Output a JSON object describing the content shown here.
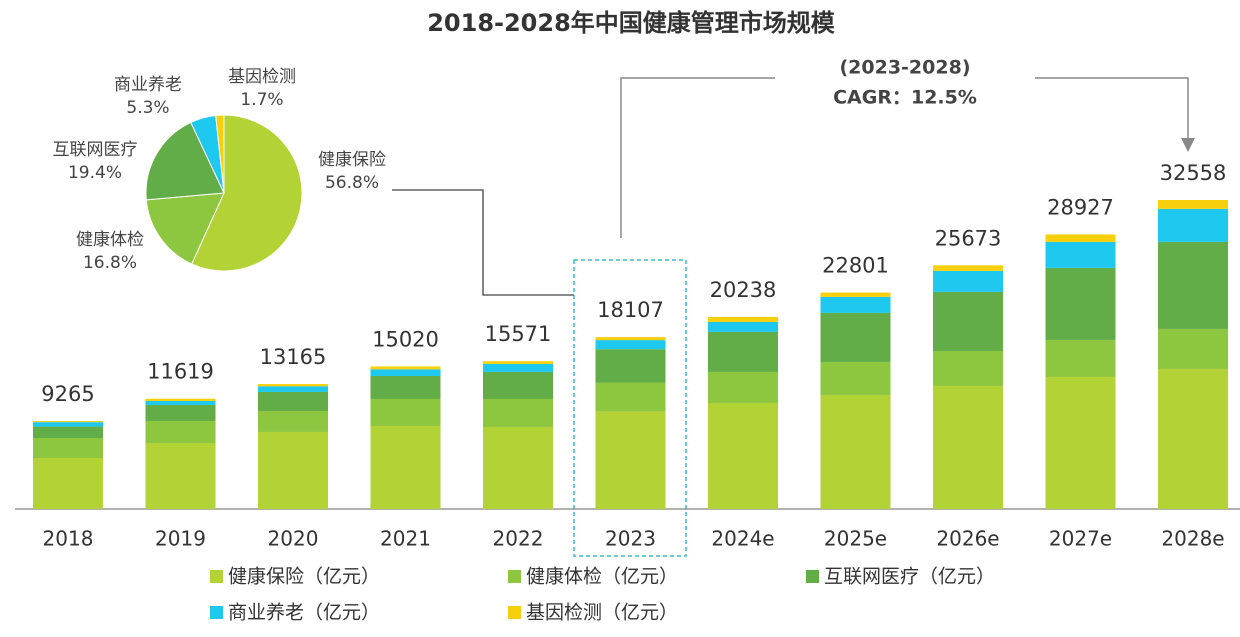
{
  "chart_data": [
    {
      "type": "stacked_bar",
      "title": "2018-2028年中国健康管理市场规模",
      "categories": [
        "2018",
        "2019",
        "2020",
        "2021",
        "2022",
        "2023",
        "2024e",
        "2025e",
        "2026e",
        "2027e",
        "2028e"
      ],
      "totals": [
        9265,
        11619,
        13165,
        15020,
        15571,
        18107,
        20238,
        22801,
        25673,
        28927,
        32558
      ],
      "series": [
        {
          "name": "健康保险（亿元）",
          "color": "#b2d235",
          "values": [
            5375,
            6956,
            8116,
            8748,
            8643,
            10284,
            11172,
            12016,
            12964,
            13912,
            14756
          ]
        },
        {
          "name": "健康体检（亿元）",
          "color": "#8dc63f",
          "values": [
            2108,
            2319,
            2213,
            2846,
            2951,
            3042,
            3267,
            3478,
            3689,
            3900,
            4216
          ]
        },
        {
          "name": "互联网医疗（亿元）",
          "color": "#62ad47",
          "values": [
            1200,
            1686,
            2003,
            2424,
            2846,
            3513,
            4216,
            5165,
            6219,
            7589,
            9170
          ]
        },
        {
          "name": "商业养老（亿元）",
          "color": "#1ec8ef",
          "values": [
            470,
            420,
            600,
            700,
            843,
            960,
            1054,
            1686,
            2213,
            2740,
            3478
          ]
        },
        {
          "name": "基因检测（亿元）",
          "color": "#f7cf0a",
          "values": [
            112,
            238,
            233,
            302,
            288,
            308,
            529,
            456,
            588,
            786,
            938
          ]
        }
      ],
      "annotations": [
        "(2023-2028)",
        "CAGR：12.5%"
      ]
    },
    {
      "type": "pie",
      "categories": [
        "健康保险",
        "健康体检",
        "互联网医疗",
        "商业养老",
        "基因检测"
      ],
      "values": [
        56.8,
        16.8,
        19.4,
        5.3,
        1.7
      ],
      "value_labels": [
        "56.8%",
        "16.8%",
        "19.4%",
        "5.3%",
        "1.7%"
      ],
      "colors": [
        "#b2d235",
        "#8dc63f",
        "#62ad47",
        "#1ec8ef",
        "#f7cf0a"
      ]
    }
  ]
}
